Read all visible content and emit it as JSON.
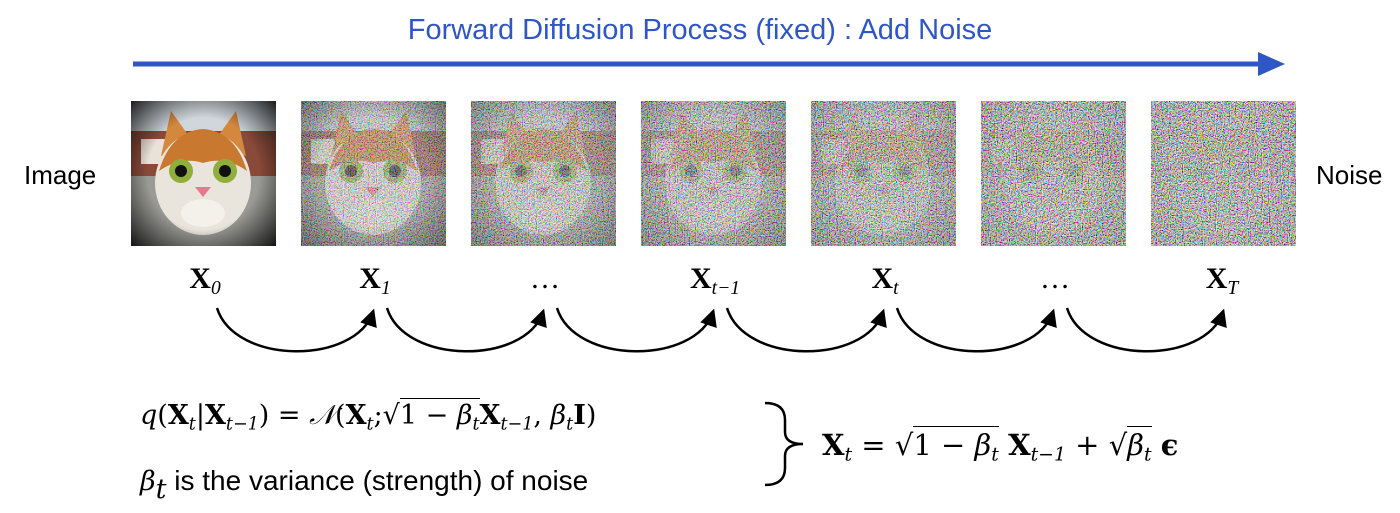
{
  "title": "Forward Diffusion Process (fixed) : Add Noise",
  "left_label": "Image",
  "right_label": "Noise",
  "steps": [
    {
      "symbol": "X",
      "sub": "0"
    },
    {
      "symbol": "X",
      "sub": "1"
    },
    {
      "symbol": "…"
    },
    {
      "symbol": "X",
      "sub": "t−1"
    },
    {
      "symbol": "X",
      "sub": "t"
    },
    {
      "symbol": "…"
    },
    {
      "symbol": "X",
      "sub": "T"
    }
  ],
  "forward_formula": [
    "q",
    "(",
    "X",
    "t",
    "|",
    "X",
    "t−1",
    ")",
    " = ",
    "𝒩",
    "(",
    "X",
    "t",
    ";",
    "√",
    "1 − ",
    "β",
    "t",
    "X",
    "t−1",
    ", ",
    "β",
    "t",
    "I",
    ")"
  ],
  "variance_note": {
    "symbol": "β",
    "sub": "t",
    "text": "is the variance (strength) of noise"
  },
  "step_formula": [
    "X",
    "t",
    " = ",
    "√",
    "1 − ",
    "β",
    "t",
    "X",
    "t−1",
    " + ",
    "√",
    "β",
    "t",
    "ϵ"
  ]
}
